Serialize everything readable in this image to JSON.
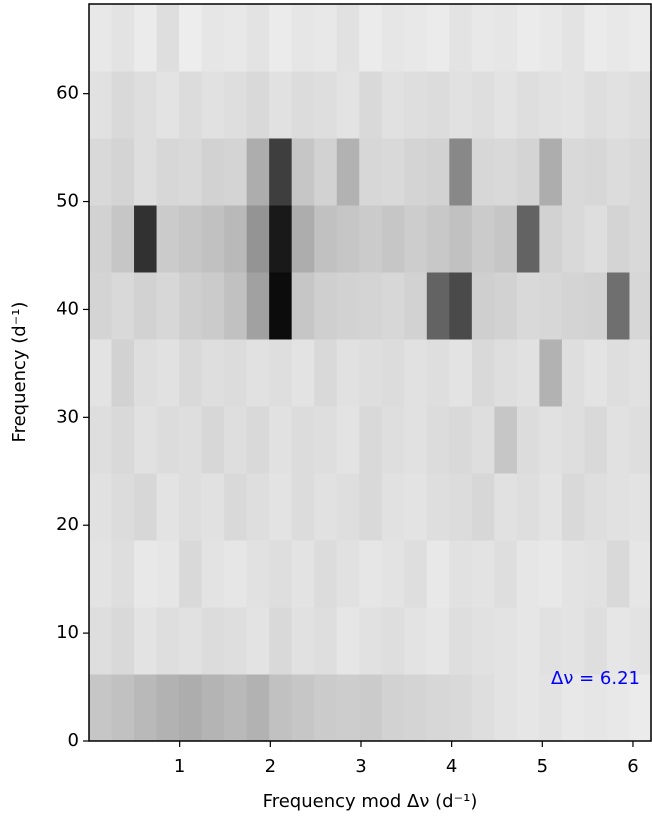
{
  "chart_data": {
    "type": "heatmap",
    "xlabel": "Frequency mod Δν (d⁻¹)",
    "ylabel": "Frequency (d⁻¹)",
    "annotation": "Δν = 6.21",
    "annotation_color": "#0000ff",
    "colormap": "Greys",
    "xlim": [
      0,
      6.21
    ],
    "ylim": [
      0,
      68.31
    ],
    "xticks": [
      1,
      2,
      3,
      4,
      5,
      6
    ],
    "yticks": [
      0,
      10,
      20,
      30,
      40,
      50,
      60
    ],
    "rows": [
      [
        0.2,
        0.22,
        0.25,
        0.28,
        0.3,
        0.27,
        0.25,
        0.28,
        0.22,
        0.2,
        0.18,
        0.17,
        0.18,
        0.15,
        0.14,
        0.13,
        0.12,
        0.1,
        0.08,
        0.07,
        0.08,
        0.06,
        0.07,
        0.06,
        0.05
      ],
      [
        0.1,
        0.12,
        0.08,
        0.1,
        0.09,
        0.11,
        0.1,
        0.08,
        0.12,
        0.09,
        0.1,
        0.07,
        0.09,
        0.1,
        0.08,
        0.07,
        0.1,
        0.09,
        0.08,
        0.07,
        0.09,
        0.08,
        0.1,
        0.07,
        0.08
      ],
      [
        0.08,
        0.1,
        0.06,
        0.07,
        0.12,
        0.08,
        0.07,
        0.09,
        0.1,
        0.08,
        0.11,
        0.09,
        0.07,
        0.08,
        0.1,
        0.06,
        0.09,
        0.08,
        0.1,
        0.07,
        0.06,
        0.08,
        0.09,
        0.12,
        0.07
      ],
      [
        0.09,
        0.11,
        0.13,
        0.08,
        0.1,
        0.09,
        0.12,
        0.1,
        0.08,
        0.11,
        0.09,
        0.1,
        0.12,
        0.09,
        0.08,
        0.1,
        0.11,
        0.13,
        0.09,
        0.1,
        0.08,
        0.12,
        0.1,
        0.09,
        0.08
      ],
      [
        0.1,
        0.12,
        0.09,
        0.11,
        0.1,
        0.13,
        0.1,
        0.12,
        0.09,
        0.11,
        0.1,
        0.08,
        0.12,
        0.1,
        0.09,
        0.11,
        0.12,
        0.1,
        0.2,
        0.11,
        0.09,
        0.1,
        0.12,
        0.09,
        0.1
      ],
      [
        0.08,
        0.15,
        0.1,
        0.09,
        0.12,
        0.1,
        0.11,
        0.09,
        0.1,
        0.08,
        0.12,
        0.09,
        0.1,
        0.11,
        0.09,
        0.1,
        0.08,
        0.12,
        0.1,
        0.09,
        0.28,
        0.1,
        0.08,
        0.1,
        0.09
      ],
      [
        0.14,
        0.12,
        0.15,
        0.13,
        0.16,
        0.18,
        0.22,
        0.35,
        0.95,
        0.2,
        0.16,
        0.15,
        0.14,
        0.13,
        0.15,
        0.6,
        0.7,
        0.16,
        0.15,
        0.12,
        0.13,
        0.14,
        0.15,
        0.55,
        0.13
      ],
      [
        0.15,
        0.2,
        0.8,
        0.18,
        0.2,
        0.22,
        0.25,
        0.4,
        0.9,
        0.3,
        0.22,
        0.2,
        0.18,
        0.2,
        0.17,
        0.19,
        0.22,
        0.18,
        0.2,
        0.6,
        0.15,
        0.12,
        0.1,
        0.14,
        0.12
      ],
      [
        0.12,
        0.14,
        0.1,
        0.13,
        0.12,
        0.15,
        0.14,
        0.3,
        0.75,
        0.2,
        0.15,
        0.28,
        0.13,
        0.12,
        0.14,
        0.15,
        0.45,
        0.13,
        0.12,
        0.14,
        0.3,
        0.12,
        0.13,
        0.11,
        0.12
      ],
      [
        0.09,
        0.12,
        0.1,
        0.08,
        0.11,
        0.09,
        0.1,
        0.12,
        0.09,
        0.11,
        0.1,
        0.08,
        0.12,
        0.09,
        0.1,
        0.11,
        0.09,
        0.1,
        0.08,
        0.1,
        0.09,
        0.08,
        0.1,
        0.09,
        0.1
      ],
      [
        0.06,
        0.08,
        0.05,
        0.1,
        0.04,
        0.07,
        0.06,
        0.08,
        0.05,
        0.07,
        0.06,
        0.09,
        0.05,
        0.07,
        0.06,
        0.05,
        0.08,
        0.06,
        0.07,
        0.05,
        0.06,
        0.08,
        0.05,
        0.06,
        0.05
      ]
    ]
  }
}
